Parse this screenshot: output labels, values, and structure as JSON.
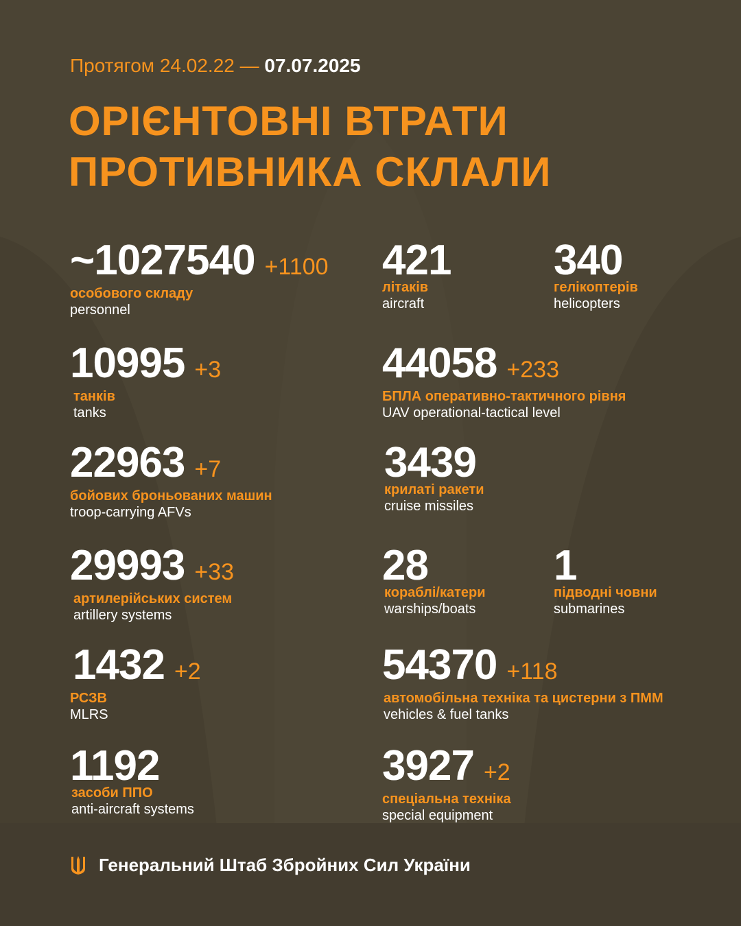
{
  "colors": {
    "background": "#4b4434",
    "accent": "#f7931e",
    "text": "#ffffff"
  },
  "header": {
    "period_prefix": "Протягом 24.02.22 —",
    "period_date": "07.07.2025"
  },
  "title": {
    "line1": "ОРІЄНТОВНІ ВТРАТИ",
    "line2": "ПРОТИВНИКА СКЛАЛИ"
  },
  "stats": [
    {
      "value": "~1027540",
      "delta": "+1100",
      "ua": "особового складу",
      "en": "personnel"
    },
    {
      "value": "421",
      "delta": "",
      "ua": "літаків",
      "en": "aircraft"
    },
    {
      "value": "340",
      "delta": "",
      "ua": "гелікоптерів",
      "en": "helicopters"
    },
    {
      "value": "10995",
      "delta": "+3",
      "ua": "танків",
      "en": "tanks"
    },
    {
      "value": "44058",
      "delta": "+233",
      "ua": "БПЛА оперативно-тактичного рівня",
      "en": "UAV operational-tactical level"
    },
    {
      "value": "22963",
      "delta": "+7",
      "ua": "бойових броньованих машин",
      "en": "troop-carrying AFVs"
    },
    {
      "value": "3439",
      "delta": "",
      "ua": "крилаті ракети",
      "en": "cruise missiles"
    },
    {
      "value": "29993",
      "delta": "+33",
      "ua": "артилерійських систем",
      "en": "artillery systems"
    },
    {
      "value": "28",
      "delta": "",
      "ua": "кораблі/катери",
      "en": "warships/boats"
    },
    {
      "value": "1",
      "delta": "",
      "ua": "підводні човни",
      "en": "submarines"
    },
    {
      "value": "1432",
      "delta": "+2",
      "ua": "РСЗВ",
      "en": "MLRS"
    },
    {
      "value": "54370",
      "delta": "+118",
      "ua": "автомобільна техніка та цистерни з ПММ",
      "en": "vehicles & fuel tanks"
    },
    {
      "value": "1192",
      "delta": "",
      "ua": "засоби ППО",
      "en": "anti-aircraft systems"
    },
    {
      "value": "3927",
      "delta": "+2",
      "ua": "спеціальна техніка",
      "en": "special equipment"
    }
  ],
  "footer": {
    "icon": "trident-icon",
    "text": "Генеральний Штаб Збройних Сил України"
  }
}
